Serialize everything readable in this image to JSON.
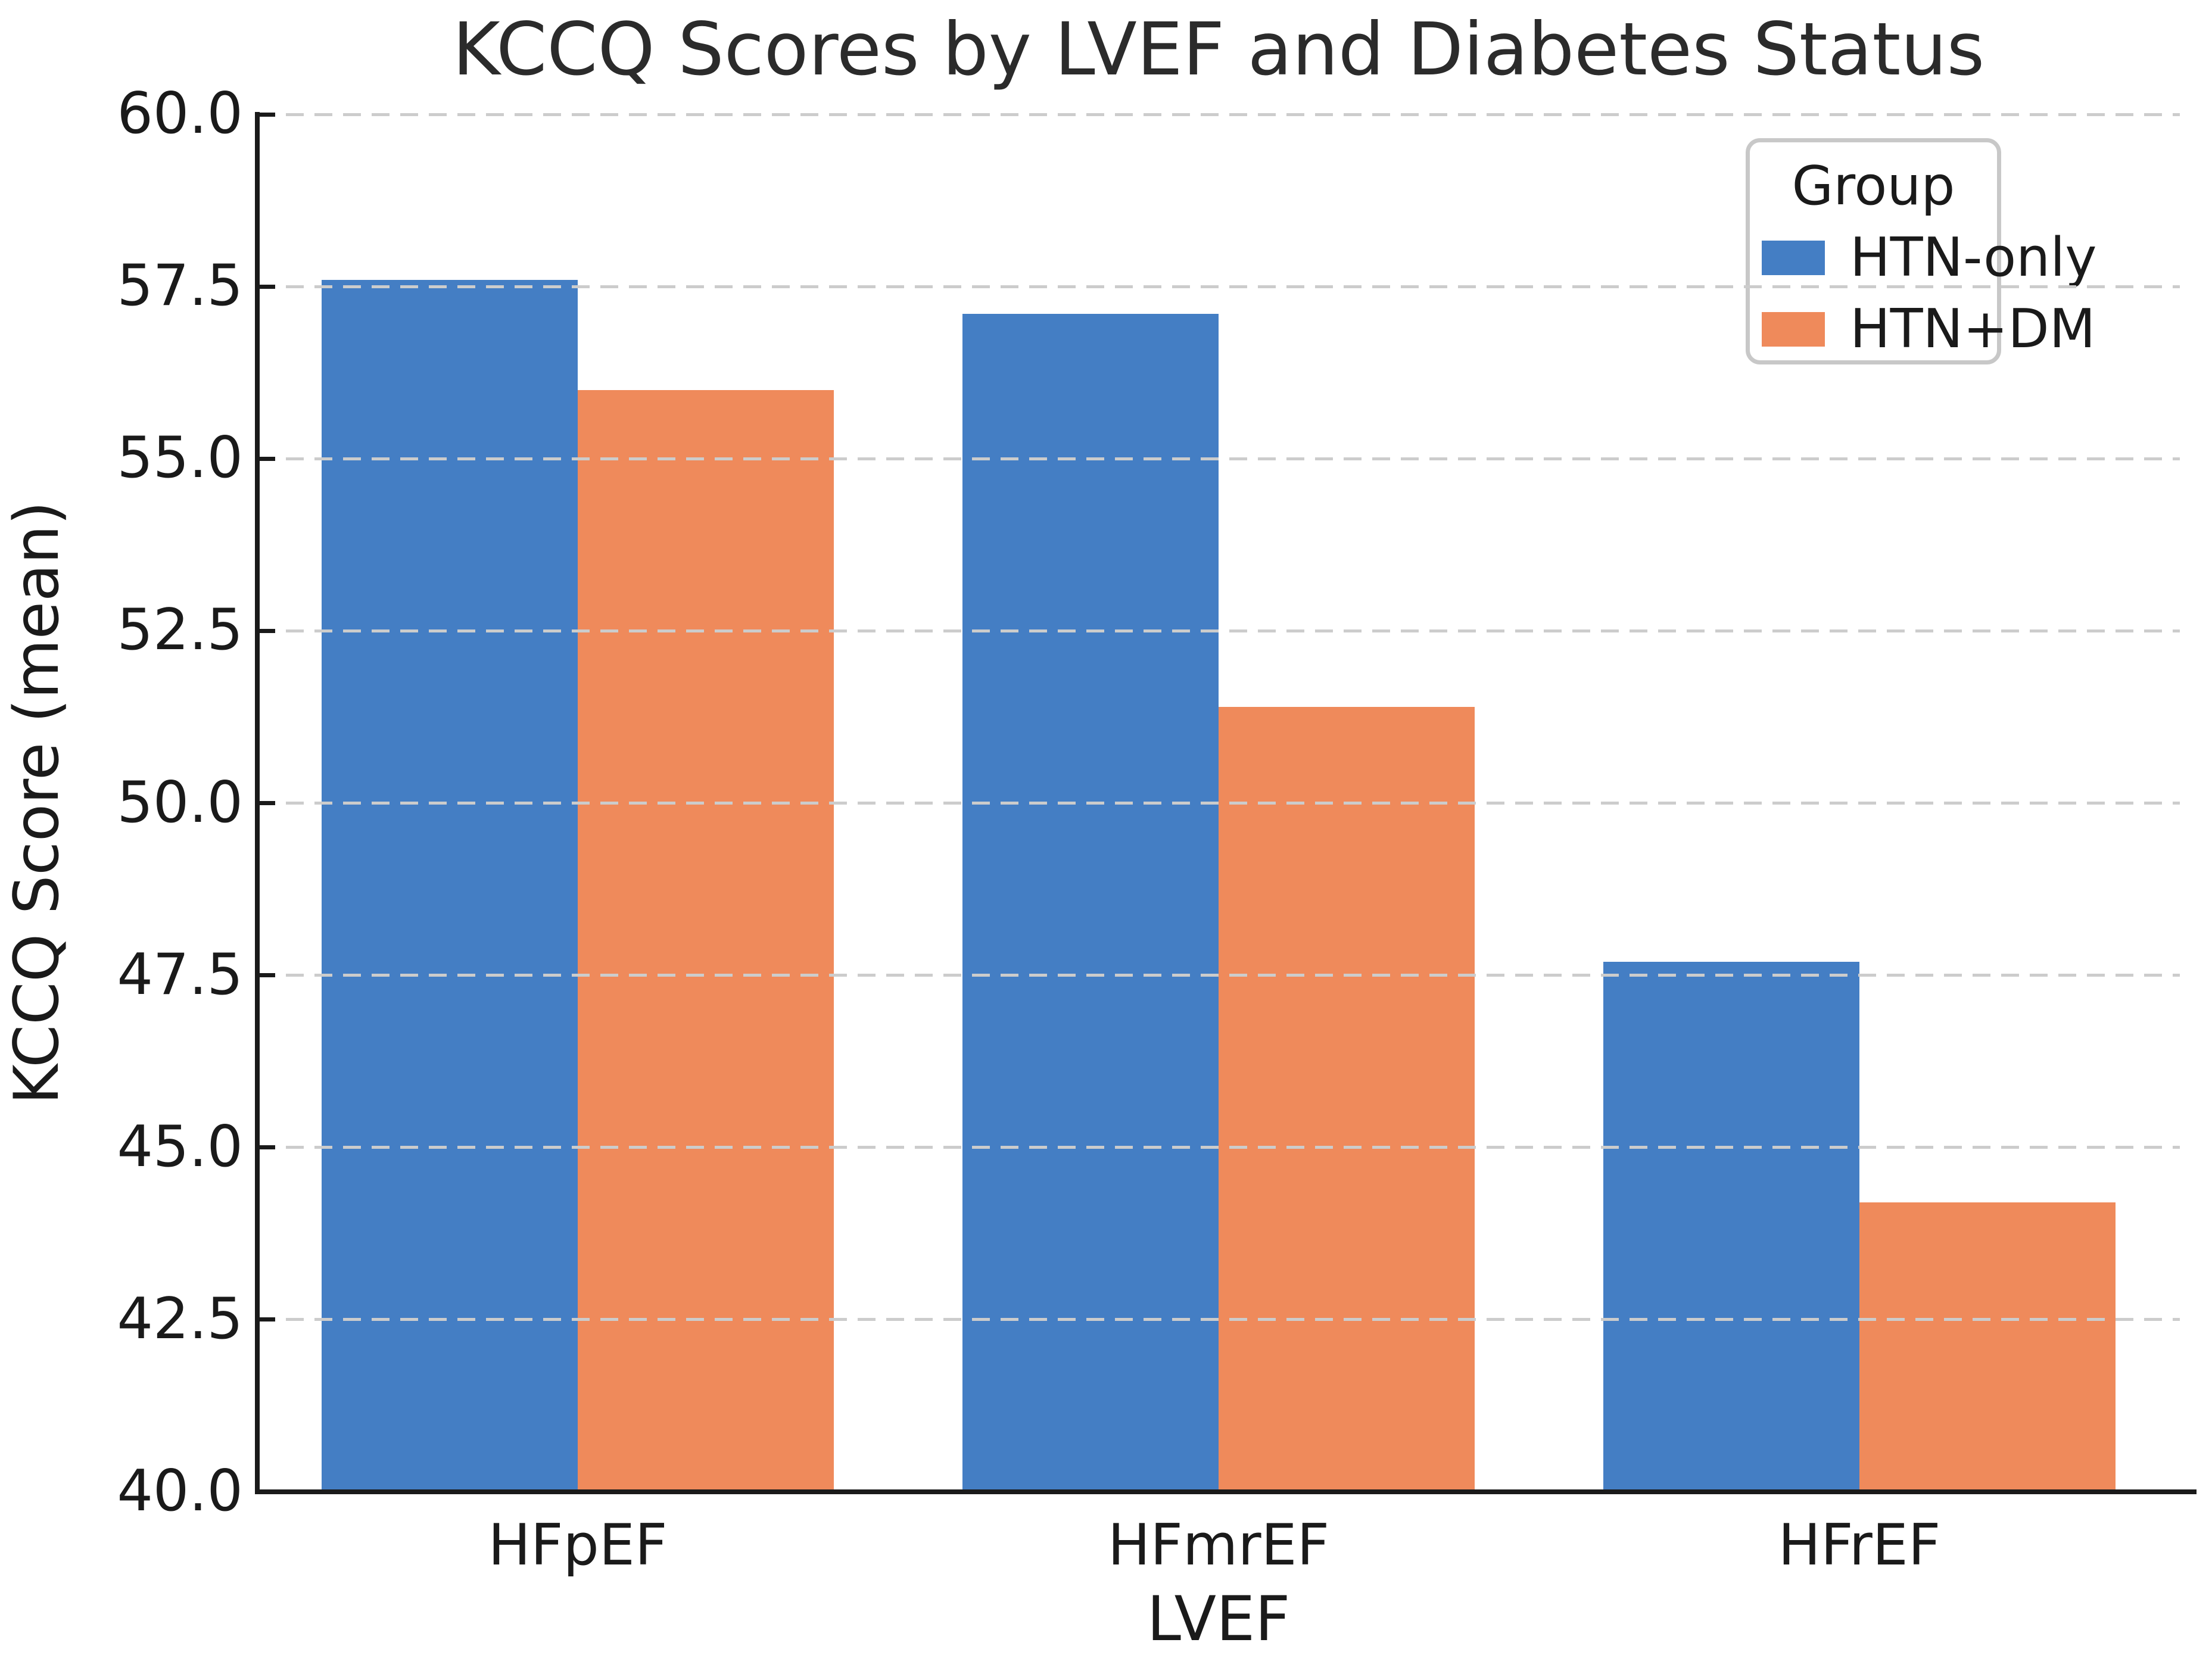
{
  "chart_data": {
    "type": "bar",
    "title": "KCCQ Scores by LVEF and Diabetes Status",
    "xlabel": "LVEF",
    "ylabel": "KCCQ Score (mean)",
    "categories": [
      "HFpEF",
      "HFmrEF",
      "HFrEF"
    ],
    "series": [
      {
        "name": "HTN-only",
        "color": "#447ec4",
        "values": [
          57.6,
          57.1,
          47.7
        ]
      },
      {
        "name": "HTN+DM",
        "color": "#ef8a5b",
        "values": [
          56.0,
          51.4,
          44.2
        ]
      }
    ],
    "ylim": [
      40.0,
      60.0
    ],
    "yticks": [
      40.0,
      42.5,
      45.0,
      47.5,
      50.0,
      52.5,
      55.0,
      57.5,
      60.0
    ],
    "ytick_labels": [
      "40.0",
      "42.5",
      "45.0",
      "47.5",
      "50.0",
      "52.5",
      "55.0",
      "57.5",
      "60.0"
    ],
    "grid": "horizontal-dashed",
    "grid_color": "#cccccc",
    "legend_title": "Group",
    "legend_position": "upper right",
    "text_color": "#1a1a1a"
  }
}
